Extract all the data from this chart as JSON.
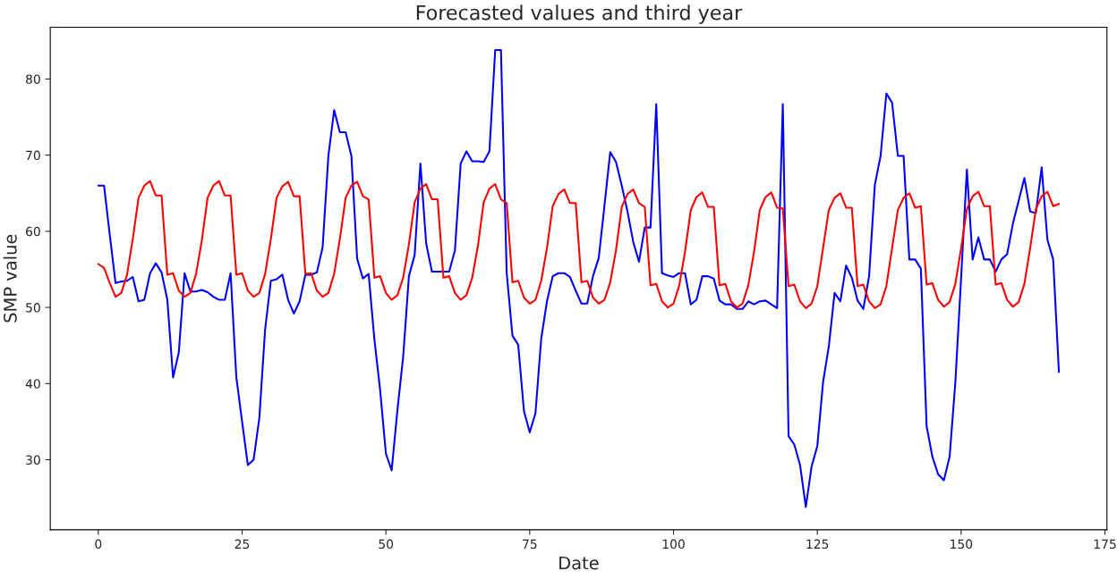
{
  "chart_data": {
    "type": "line",
    "title": "Forecasted values and third year",
    "xlabel": "Date",
    "ylabel": "SMP value",
    "x": [
      0,
      1,
      2,
      3,
      4,
      5,
      6,
      7,
      8,
      9,
      10,
      11,
      12,
      13,
      14,
      15,
      16,
      17,
      18,
      19,
      20,
      21,
      22,
      23,
      24,
      25,
      26,
      27,
      28,
      29,
      30,
      31,
      32,
      33,
      34,
      35,
      36,
      37,
      38,
      39,
      40,
      41,
      42,
      43,
      44,
      45,
      46,
      47,
      48,
      49,
      50,
      51,
      52,
      53,
      54,
      55,
      56,
      57,
      58,
      59,
      60,
      61,
      62,
      63,
      64,
      65,
      66,
      67,
      68,
      69,
      70,
      71,
      72,
      73,
      74,
      75,
      76,
      77,
      78,
      79,
      80,
      81,
      82,
      83,
      84,
      85,
      86,
      87,
      88,
      89,
      90,
      91,
      92,
      93,
      94,
      95,
      96,
      97,
      98,
      99,
      100,
      101,
      102,
      103,
      104,
      105,
      106,
      107,
      108,
      109,
      110,
      111,
      112,
      113,
      114,
      115,
      116,
      117,
      118,
      119,
      120,
      121,
      122,
      123,
      124,
      125,
      126,
      127,
      128,
      129,
      130,
      131,
      132,
      133,
      134,
      135,
      136,
      137,
      138,
      139,
      140,
      141,
      142,
      143,
      144,
      145,
      146,
      147,
      148,
      149,
      150,
      151,
      152,
      153,
      154,
      155,
      156,
      157,
      158,
      159,
      160,
      161,
      162,
      163,
      164,
      165,
      166,
      167
    ],
    "series": [
      {
        "color": "#0000ff",
        "values": [
          66.0,
          66.0,
          59.5,
          53.2,
          53.4,
          53.5,
          54.0,
          50.8,
          51.0,
          54.5,
          55.8,
          54.6,
          51.0,
          40.8,
          44.1,
          54.5,
          52.1,
          52.1,
          52.3,
          52.0,
          51.4,
          51.0,
          51.0,
          54.5,
          40.8,
          35.0,
          29.3,
          30.0,
          35.5,
          47.1,
          53.5,
          53.7,
          54.3,
          51.0,
          49.2,
          50.8,
          54.3,
          54.3,
          54.6,
          57.9,
          69.9,
          75.9,
          73.0,
          73.0,
          69.9,
          56.4,
          53.8,
          54.4,
          45.8,
          39.1,
          30.8,
          28.6,
          36.5,
          43.5,
          54.1,
          56.9,
          68.9,
          58.4,
          54.7,
          54.7,
          54.7,
          54.7,
          57.5,
          68.9,
          70.5,
          69.2,
          69.2,
          69.1,
          70.5,
          83.8,
          83.8,
          54.5,
          46.3,
          45.1,
          36.4,
          33.6,
          36.1,
          45.9,
          50.8,
          54.1,
          54.5,
          54.5,
          54.0,
          52.2,
          50.5,
          50.5,
          54.1,
          56.5,
          63.4,
          70.4,
          69.1,
          66.0,
          62.6,
          58.6,
          56.0,
          60.5,
          60.5,
          76.7,
          54.5,
          54.2,
          54.0,
          54.5,
          54.5,
          50.4,
          51.0,
          54.1,
          54.1,
          53.8,
          50.9,
          50.4,
          50.4,
          49.8,
          49.8,
          50.8,
          50.4,
          50.8,
          50.9,
          50.4,
          49.9,
          76.7,
          33.1,
          32.0,
          29.3,
          23.8,
          29.1,
          31.8,
          40.2,
          44.9,
          51.9,
          50.8,
          55.5,
          53.9,
          50.9,
          49.8,
          54.1,
          66.1,
          69.9,
          78.1,
          76.9,
          69.9,
          69.9,
          56.3,
          56.3,
          55.1,
          34.4,
          30.4,
          28.1,
          27.3,
          30.4,
          40.2,
          53.9,
          68.1,
          56.3,
          59.2,
          56.3,
          56.3,
          54.7,
          56.3,
          57.0,
          61.0,
          64.0,
          67.0,
          62.6,
          62.4,
          68.4,
          58.9,
          56.3,
          41.5
        ]
      },
      {
        "color": "#ff0000",
        "values": [
          55.7,
          55.2,
          53.2,
          51.4,
          51.9,
          54.3,
          59.0,
          64.4,
          66.0,
          66.6,
          64.7,
          64.7,
          54.3,
          54.5,
          52.2,
          51.4,
          51.9,
          54.4,
          58.8,
          64.4,
          66.0,
          66.6,
          64.7,
          64.7,
          54.3,
          54.5,
          52.2,
          51.4,
          51.9,
          54.4,
          59.0,
          64.4,
          65.9,
          66.5,
          64.6,
          64.6,
          54.4,
          54.5,
          52.2,
          51.4,
          51.9,
          54.4,
          59.0,
          64.4,
          66.0,
          66.5,
          64.6,
          64.2,
          53.9,
          54.1,
          51.9,
          51.0,
          51.6,
          53.9,
          58.3,
          63.8,
          65.6,
          66.2,
          64.2,
          64.2,
          53.9,
          54.1,
          51.9,
          51.0,
          51.6,
          53.9,
          58.1,
          63.8,
          65.6,
          66.2,
          64.2,
          63.7,
          53.3,
          53.5,
          51.3,
          50.5,
          51.0,
          53.5,
          57.8,
          63.3,
          64.9,
          65.5,
          63.7,
          63.7,
          53.3,
          53.5,
          51.3,
          50.5,
          51.0,
          53.3,
          57.5,
          63.2,
          64.9,
          65.5,
          63.7,
          63.2,
          52.9,
          53.1,
          50.8,
          50.0,
          50.5,
          52.9,
          57.3,
          62.8,
          64.5,
          65.1,
          63.2,
          63.2,
          52.9,
          53.1,
          50.8,
          50.0,
          50.5,
          52.9,
          57.3,
          62.8,
          64.5,
          65.1,
          63.1,
          63.0,
          52.8,
          53.0,
          50.8,
          49.9,
          50.5,
          52.8,
          57.8,
          62.8,
          64.4,
          65.0,
          63.1,
          63.1,
          52.8,
          53.0,
          50.8,
          49.9,
          50.4,
          52.8,
          57.8,
          62.8,
          64.4,
          65.0,
          63.1,
          63.3,
          53.0,
          53.2,
          51.0,
          50.1,
          50.7,
          53.1,
          57.8,
          62.9,
          64.6,
          65.2,
          63.3,
          63.3,
          53.0,
          53.2,
          51.0,
          50.1,
          50.7,
          53.1,
          57.8,
          62.9,
          64.6,
          65.2,
          63.3,
          63.6
        ]
      }
    ],
    "xlim": [
      -8.35,
      175.35
    ],
    "ylim": [
      20.8,
      86.8
    ],
    "xticks": [
      0,
      25,
      50,
      75,
      100,
      125,
      150,
      175
    ],
    "yticks": [
      30,
      40,
      50,
      60,
      70,
      80
    ],
    "grid": false
  }
}
